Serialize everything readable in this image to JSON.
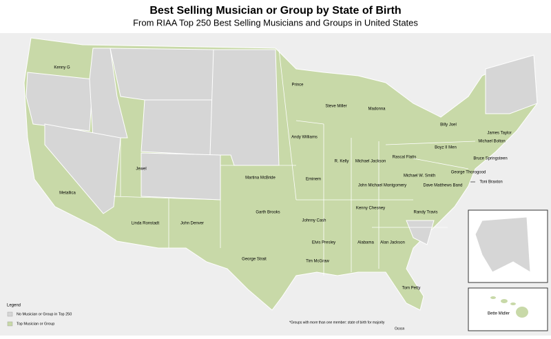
{
  "header": {
    "title": "Best Selling Musician or Group by State of Birth",
    "subtitle": "From RIAA Top 250 Best Selling Musicians and Groups in United States"
  },
  "states": [
    {
      "label": "Kenny G"
    },
    {
      "label": "Prince"
    },
    {
      "label": "Steve Miller"
    },
    {
      "label": "Madonna"
    },
    {
      "label": "Billy Joel"
    },
    {
      "label": "James Taylor"
    },
    {
      "label": "Michael Bolton"
    },
    {
      "label": "Andy Williams"
    },
    {
      "label": "Boyz II Men"
    },
    {
      "label": "Bruce Springsteen"
    },
    {
      "label": "R. Kelly"
    },
    {
      "label": "Michael Jackson"
    },
    {
      "label": "Rascal Flatts"
    },
    {
      "label": "Jewel"
    },
    {
      "label": "George Thorogood"
    },
    {
      "label": "Michael W. Smith"
    },
    {
      "label": "Martina McBride"
    },
    {
      "label": "Eminem"
    },
    {
      "label": "Toni Braxton"
    },
    {
      "label": "John Michael Montgomery"
    },
    {
      "label": "Dave Matthews Band"
    },
    {
      "label": "Metallica"
    },
    {
      "label": "Kenny Chesney"
    },
    {
      "label": "Garth Brooks"
    },
    {
      "label": "Randy Travis"
    },
    {
      "label": "Johnny Cash"
    },
    {
      "label": "Linda Ronstadt"
    },
    {
      "label": "John Denver"
    },
    {
      "label": "Elvis Presley"
    },
    {
      "label": "Alabama"
    },
    {
      "label": "Alan Jackson"
    },
    {
      "label": "George Strait"
    },
    {
      "label": "Tim McGraw"
    },
    {
      "label": "Tom Petty"
    },
    {
      "label": "Bette Midler"
    }
  ],
  "legend": {
    "title": "Legend",
    "items": [
      {
        "label": "No Musician or Group in Top 250"
      },
      {
        "label": "Top Musician or Group"
      }
    ]
  },
  "footnote": {
    "note": "*Groups with more than one member: state of birth for majority",
    "source": "Ocosn"
  }
}
